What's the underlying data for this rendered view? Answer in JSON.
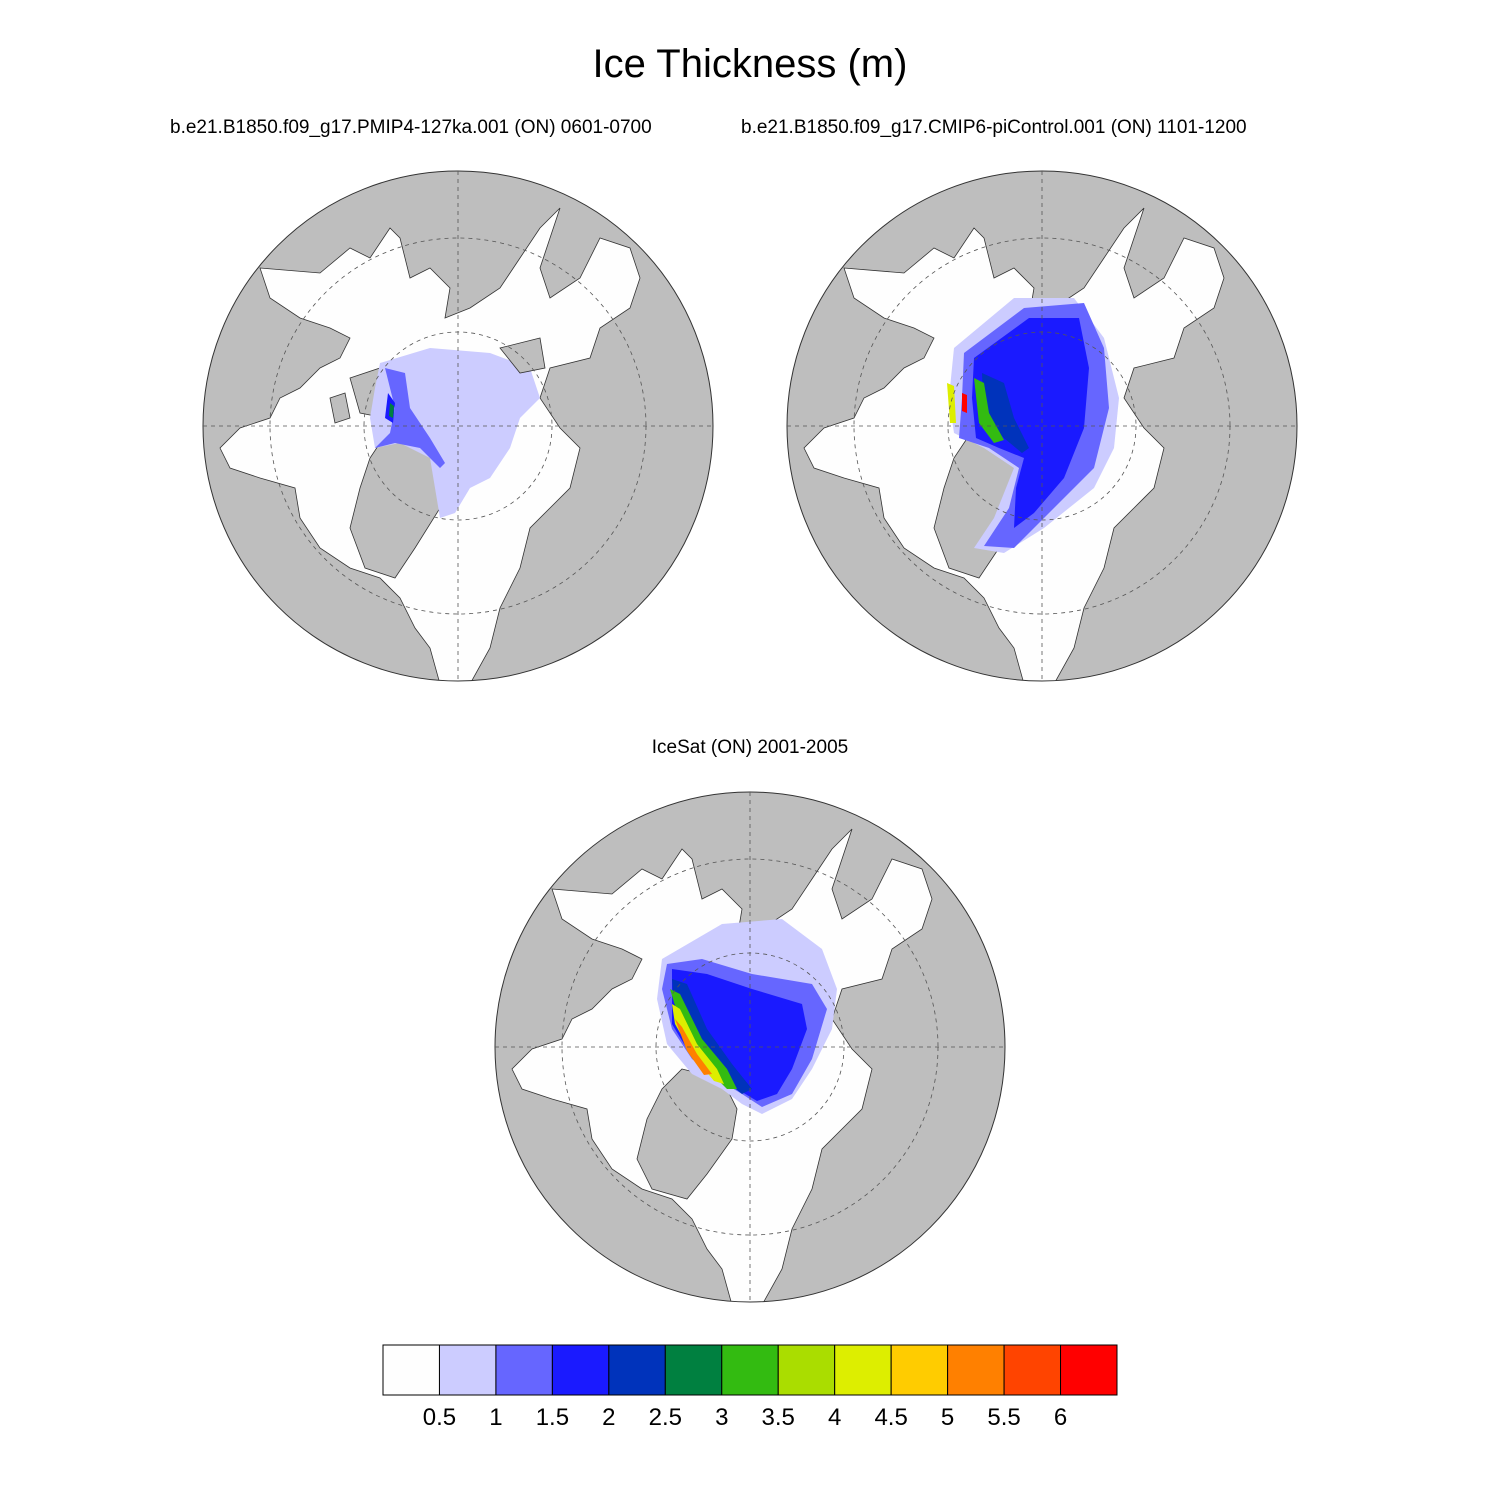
{
  "title": "Ice Thickness (m)",
  "panels": [
    {
      "id": "map1",
      "title": "b.e21.B1850.f09_g17.PMIP4-127ka.001 (ON) 0601-0700"
    },
    {
      "id": "map2",
      "title": "b.e21.B1850.f09_g17.CMIP6-piControl.001 (ON) 1101-1200"
    },
    {
      "id": "map3",
      "title": "IceSat (ON) 2001-2005"
    }
  ],
  "colorbar": {
    "levels": [
      "0.5",
      "1",
      "1.5",
      "2",
      "2.5",
      "3",
      "3.5",
      "4",
      "4.5",
      "5",
      "5.5",
      "6"
    ],
    "colors": [
      "#fefefe",
      "#ccccff",
      "#6666ff",
      "#1a1aff",
      "#0033bb",
      "#008040",
      "#33bb11",
      "#aadd00",
      "#ddee00",
      "#ffcc00",
      "#ff8000",
      "#ff4400",
      "#ff0000"
    ]
  },
  "map_colors": {
    "land": "#bebebe",
    "ocean": "#fefefe",
    "grid": "#555555"
  }
}
